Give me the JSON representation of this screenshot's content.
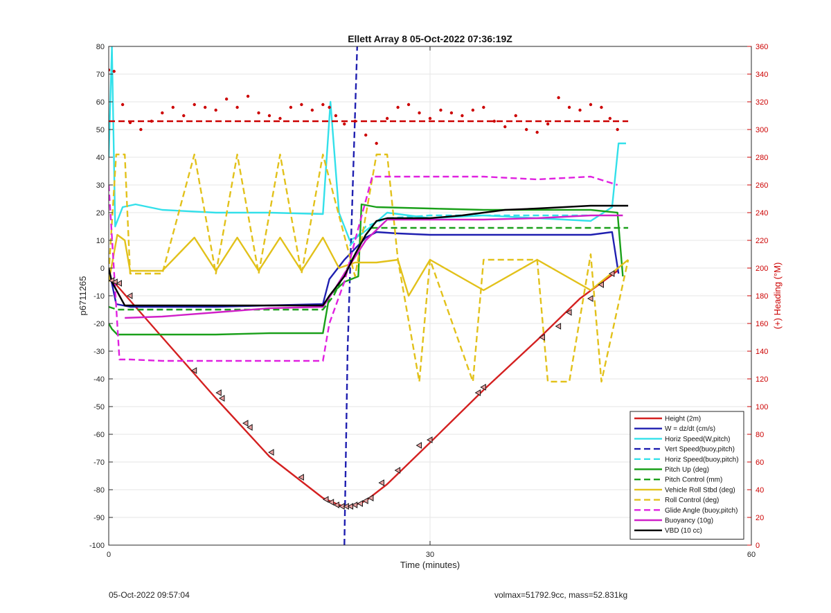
{
  "chart_data": {
    "type": "line",
    "title": "Ellett Array 8 05-Oct-2022 07:36:19Z",
    "xlabel": "Time (minutes)",
    "ylabel_left": "p6711265",
    "ylabel_right": "(+) Heading (°M)",
    "xlim": [
      0,
      60
    ],
    "ylim_left": [
      -100,
      80
    ],
    "ylim_right": [
      0,
      360
    ],
    "x_ticks": [
      0,
      30,
      60
    ],
    "y_ticks_left": [
      -100,
      -90,
      -80,
      -70,
      -60,
      -50,
      -40,
      -30,
      -20,
      -10,
      0,
      10,
      20,
      30,
      40,
      50,
      60,
      70,
      80
    ],
    "y_ticks_right": [
      0,
      20,
      40,
      60,
      80,
      100,
      120,
      140,
      160,
      180,
      200,
      220,
      240,
      260,
      280,
      300,
      320,
      340,
      360
    ],
    "grid": true,
    "legend_position": "bottom-right",
    "colors": {
      "right_axis": "#cc0000"
    },
    "series": [
      {
        "name": "Height (2m)",
        "color": "#d42020",
        "style": "solid",
        "x": [
          0,
          0.7,
          5,
          10,
          15,
          20,
          21.5,
          22.2,
          23,
          24,
          26,
          30,
          35,
          40,
          44,
          47.5
        ],
        "y": [
          -3,
          -6,
          -25,
          -47,
          -68,
          -83,
          -85.5,
          -86,
          -85.5,
          -84,
          -78,
          -63,
          -44,
          -26,
          -11,
          -1
        ]
      },
      {
        "name": "W = dz/dt (cm/s)",
        "color": "#1f1fb0",
        "style": "solid",
        "x": [
          0,
          0.7,
          2,
          5,
          10,
          15,
          20,
          20.6,
          22,
          23,
          24,
          25,
          27,
          30,
          35,
          40,
          45,
          47,
          47.6
        ],
        "y": [
          0,
          -13,
          -14,
          -14,
          -14,
          -13.5,
          -13,
          -4,
          3,
          7,
          11,
          13,
          12.5,
          12,
          12,
          12,
          12,
          13,
          -2
        ]
      },
      {
        "name": "Horiz Speed(W,pitch)",
        "color": "#33e0ea",
        "style": "solid",
        "x": [
          0,
          0.3,
          0.6,
          1.3,
          2.5,
          5,
          10,
          15,
          20,
          20.7,
          21.5,
          22.5,
          23.5,
          24.5,
          26,
          30,
          35,
          40,
          45,
          47,
          47.6,
          48.3
        ],
        "y": [
          40,
          80,
          15,
          22,
          23,
          21,
          20,
          20,
          19.5,
          60,
          20,
          10,
          12,
          15,
          20,
          18,
          19,
          18,
          17,
          22,
          45,
          45
        ]
      },
      {
        "name": "Vert Speed(buoy,pitch)",
        "color": "#1f1fb0",
        "style": "dashed",
        "x": [
          22,
          22.3,
          23.2
        ],
        "y": [
          -100,
          -30,
          80
        ]
      },
      {
        "name": "Horiz Speed(buoy,pitch)",
        "color": "#33e0ea",
        "style": "dashed",
        "x": [
          22.5,
          24,
          26,
          30,
          35,
          40,
          45
        ],
        "y": [
          8,
          15,
          18,
          19,
          19,
          19,
          19
        ]
      },
      {
        "name": "Pitch Up (deg)",
        "color": "#1aa01a",
        "style": "solid",
        "x": [
          0,
          0.3,
          0.8,
          5,
          10,
          15,
          20,
          20.6,
          22,
          23.3,
          23.6,
          25,
          30,
          35,
          40,
          45,
          47.5,
          48
        ],
        "y": [
          -20,
          -22,
          -24,
          -24,
          -24,
          -23.5,
          -23.5,
          -10,
          -5,
          -3,
          23,
          22,
          21.5,
          21,
          21,
          21,
          20,
          -3
        ]
      },
      {
        "name": "Pitch Control (mm)",
        "color": "#1aa01a",
        "style": "dashed",
        "x": [
          0,
          0.8,
          5,
          10,
          15,
          20,
          21,
          22,
          23,
          24,
          24.5,
          30,
          35,
          40,
          45,
          48.5
        ],
        "y": [
          -14,
          -15,
          -15,
          -15,
          -15,
          -15,
          -10,
          -2,
          5,
          12,
          14.5,
          14.5,
          14.5,
          14.5,
          14.5,
          14.5
        ]
      },
      {
        "name": "Vehicle Roll Stbd (deg)",
        "color": "#e2c11a",
        "style": "solid",
        "x": [
          0,
          0.8,
          1.5,
          2,
          5,
          8,
          10,
          12,
          14,
          16,
          18,
          20,
          21.5,
          23,
          25,
          27,
          28,
          30,
          35,
          40,
          45,
          48.5
        ],
        "y": [
          -5,
          12,
          10,
          -1,
          -1,
          11,
          -1,
          11,
          -1,
          11,
          -1,
          11,
          0,
          2,
          2,
          3,
          -10,
          3,
          -8,
          3,
          -8,
          3
        ]
      },
      {
        "name": "Roll Control (deg)",
        "color": "#e2c11a",
        "style": "dashed",
        "x": [
          0,
          0.7,
          1.5,
          2,
          5,
          8,
          10,
          12,
          14,
          16,
          18,
          20,
          23,
          25,
          26,
          27,
          29,
          30,
          34,
          35,
          40,
          41,
          43,
          45,
          46,
          48.5
        ],
        "y": [
          -2,
          41,
          41,
          -2,
          -2,
          41,
          -2,
          41,
          -2,
          41,
          -2,
          41,
          -3,
          41,
          41,
          3,
          -41,
          3,
          -41,
          3,
          3,
          -41,
          -41,
          5,
          -41,
          3
        ]
      },
      {
        "name": "Glide Angle (buoy,pitch)",
        "color": "#e020e0",
        "style": "dashed",
        "x": [
          0,
          1,
          2,
          5,
          10,
          15,
          20,
          20.6,
          22,
          23,
          24.6,
          26,
          30,
          35,
          40,
          45,
          47.5
        ],
        "y": [
          30,
          -33,
          -33,
          -33.5,
          -33.5,
          -33.5,
          -33.5,
          -20,
          -5,
          10,
          33,
          33,
          33,
          33,
          32,
          33,
          30
        ]
      },
      {
        "name": "Buoyancy (10g)",
        "color": "#d020c8",
        "style": "solid",
        "x": [
          1.5,
          5,
          10,
          15,
          20,
          20.7,
          22,
          24,
          26,
          30,
          35,
          40,
          45,
          48
        ],
        "y": [
          -18,
          -17.5,
          -16,
          -14.5,
          -14,
          -10,
          -2,
          10,
          17.5,
          17.5,
          17.5,
          18,
          19,
          19
        ]
      },
      {
        "name": "VBD (10 cc)",
        "color": "#000000",
        "style": "solid",
        "x": [
          0,
          0.3,
          1.5,
          5,
          10,
          15,
          20,
          20.6,
          22,
          23,
          24,
          25,
          26,
          30,
          33,
          35,
          37,
          40,
          45,
          48.5
        ],
        "y": [
          0,
          -5,
          -13.5,
          -13.5,
          -13.5,
          -13.5,
          -13.5,
          -10,
          -3,
          5,
          12,
          17,
          18,
          18,
          19,
          20,
          21,
          21.5,
          22.5,
          22.5
        ]
      },
      {
        "name": "Heading",
        "axis": "right",
        "color": "#cc0000",
        "style": "points",
        "x": [
          0,
          0.5,
          1.3,
          2,
          3,
          4,
          5,
          6,
          7,
          8,
          9,
          10,
          11,
          12,
          13,
          14,
          15,
          16,
          17,
          18,
          19,
          20,
          20.6,
          21.2,
          22,
          23,
          24,
          25,
          26,
          27,
          28,
          29,
          30,
          31,
          32,
          33,
          34,
          35,
          36,
          37,
          38,
          39,
          40,
          41,
          42,
          43,
          44,
          45,
          46,
          46.8,
          47.5
        ],
        "y": [
          343,
          342,
          318,
          305,
          300,
          306,
          312,
          316,
          310,
          318,
          316,
          314,
          322,
          316,
          324,
          312,
          310,
          308,
          316,
          318,
          314,
          318,
          316,
          310,
          304,
          306,
          296,
          290,
          308,
          316,
          318,
          312,
          308,
          314,
          312,
          310,
          314,
          316,
          306,
          302,
          310,
          300,
          298,
          304,
          323,
          316,
          314,
          318,
          316,
          308,
          300
        ]
      },
      {
        "name": "Heading target",
        "axis": "right",
        "color": "#cc0000",
        "style": "dashed",
        "x": [
          0,
          48.5
        ],
        "y": [
          306,
          306
        ]
      }
    ],
    "markers": {
      "x": [
        0.3,
        0.6,
        1,
        2,
        8,
        10.3,
        10.6,
        12.8,
        13.2,
        15.2,
        18,
        20.3,
        20.8,
        21.3,
        21.8,
        22.2,
        22.6,
        23,
        23.5,
        24,
        24.5,
        25.5,
        27,
        29,
        30,
        34.5,
        35,
        40.5,
        42,
        43,
        45,
        46,
        47
      ],
      "y": [
        -4.5,
        -5,
        -5.5,
        -10,
        -37,
        -45,
        -47,
        -56,
        -57.5,
        -66.5,
        -75.5,
        -83.5,
        -84.5,
        -85.5,
        -86,
        -86,
        -86,
        -85.5,
        -85,
        -84,
        -83,
        -77.5,
        -73,
        -64,
        -62,
        -45,
        -43,
        -25,
        -21,
        -16,
        -11,
        -6,
        -2
      ]
    }
  },
  "footer": {
    "left": "05-Oct-2022 09:57:04",
    "right": "volmax=51792.9cc, mass=52.831kg"
  }
}
